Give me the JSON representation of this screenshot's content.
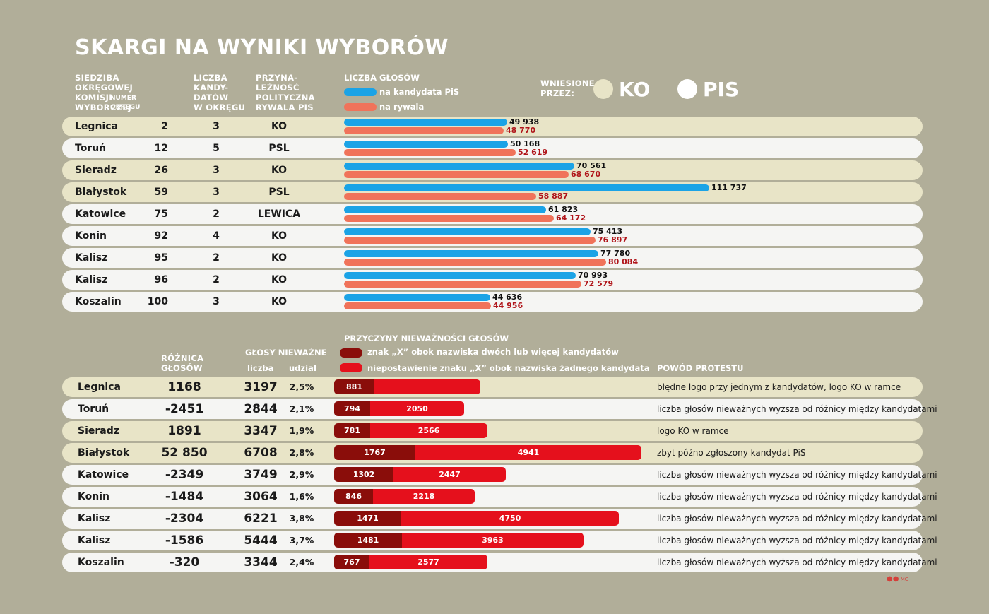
{
  "title": "SKARGI NA WYNIKI WYBORÓW",
  "colors": {
    "background": "#b1ae99",
    "row_ko": "#e8e4c7",
    "row_other": "#f5f5f3",
    "pis": "#1ba3e6",
    "rival": "#f0735a",
    "pis_label": "#111111",
    "rival_label": "#b0151a",
    "invalid_x": "#8a0d0a",
    "invalid_none": "#e5101c",
    "ko_circle": "#e8e4c7",
    "pis_circle": "#ffffff"
  },
  "top_headers": {
    "seat": "SIEDZIBA\nOKRĘGOWEJ\nKOMISJI\nWYBORCZEJ",
    "district_no": "NUMER\nOKRĘGU",
    "candidates": "LICZBA\nKANDY-\nDATÓW\nW OKRĘGU",
    "affiliation": "PRZYNA-\nLEŻNOŚĆ\nPOLITYCZNA\nRYWALA PIS",
    "votes": "LICZBA GŁOSÓW"
  },
  "vote_legend": {
    "pis": "na kandydata PiS",
    "rival": "na rywala"
  },
  "filed_by": {
    "label": "WNIESIONE\nPRZEZ:",
    "ko": "KO",
    "pis": "PIS"
  },
  "bottom_headers": {
    "difference": "RÓŻNICA\nGŁOSÓW",
    "invalid": "GŁOSY NIEWAŻNE",
    "count": "liczba",
    "share": "udział",
    "reasons_title": "PRZYCZYNY NIEWAŻNOŚCI GŁOSÓW",
    "reason_x": "znak „X” obok nazwiska dwóch lub więcej kandydatów",
    "reason_none": "niepostawienie znaku „X” obok nazwiska żadnego kandydata",
    "protest": "POWÓD PROTESTU"
  },
  "credit": "MC",
  "chart_data": [
    {
      "type": "bar",
      "orientation": "horizontal",
      "title": "LICZBA GŁOSÓW",
      "categories": [
        "Legnica",
        "Toruń",
        "Sieradz",
        "Białystok",
        "Katowice",
        "Konin",
        "Kalisz",
        "Kalisz",
        "Koszalin"
      ],
      "district_numbers": [
        "2",
        "12",
        "26",
        "59",
        "75",
        "92",
        "95",
        "96",
        "100"
      ],
      "candidates_count": [
        "3",
        "5",
        "3",
        "3",
        "2",
        "4",
        "2",
        "2",
        "3"
      ],
      "rival_party": [
        "KO",
        "PSL",
        "KO",
        "PSL",
        "LEWICA",
        "KO",
        "KO",
        "KO",
        "KO"
      ],
      "filed_by": [
        "KO",
        "PIS",
        "KO",
        "KO",
        "PIS",
        "PIS",
        "PIS",
        "PIS",
        "PIS"
      ],
      "series": [
        {
          "name": "na kandydata PiS",
          "values": [
            49938,
            50168,
            70561,
            111737,
            61823,
            75413,
            77780,
            70993,
            44636
          ],
          "labels": [
            "49 938",
            "50 168",
            "70 561",
            "111 737",
            "61 823",
            "75 413",
            "77 780",
            "70 993",
            "44 636"
          ]
        },
        {
          "name": "na rywala",
          "values": [
            48770,
            52619,
            68670,
            58887,
            64172,
            76897,
            80084,
            72579,
            44956
          ],
          "labels": [
            "48 770",
            "52 619",
            "68 670",
            "58 887",
            "64 172",
            "76 897",
            "80 084",
            "72 579",
            "44 956"
          ]
        }
      ],
      "xlim": [
        0,
        111737
      ],
      "grid": false,
      "legend": "top-left"
    },
    {
      "type": "bar",
      "orientation": "horizontal",
      "stacked": true,
      "title": "PRZYCZYNY NIEWAŻNOŚCI GŁOSÓW",
      "categories": [
        "Legnica",
        "Toruń",
        "Sieradz",
        "Białystok",
        "Katowice",
        "Konin",
        "Kalisz",
        "Kalisz",
        "Koszalin"
      ],
      "difference": [
        "1168",
        "-2451",
        "1891",
        "52 850",
        "-2349",
        "-1484",
        "-2304",
        "-1586",
        "-320"
      ],
      "invalid_count": [
        "3197",
        "2844",
        "3347",
        "6708",
        "3749",
        "3064",
        "6221",
        "5444",
        "3344"
      ],
      "invalid_share": [
        "2,5%",
        "2,1%",
        "1,9%",
        "2,8%",
        "2,9%",
        "1,6%",
        "3,8%",
        "3,7%",
        "2,4%"
      ],
      "series": [
        {
          "name": "znak „X” obok nazwiska dwóch lub więcej kandydatów",
          "values": [
            881,
            794,
            781,
            1767,
            1302,
            846,
            1471,
            1481,
            767
          ]
        },
        {
          "name": "niepostawienie znaku „X” obok nazwiska żadnego kandydata",
          "values": [
            null,
            2050,
            2566,
            4941,
            2447,
            2218,
            4750,
            3963,
            2577
          ]
        }
      ],
      "protest_reason": [
        "błędne logo przy jednym z kandydatów, logo KO w ramce",
        "liczba głosów nieważnych wyższa od różnicy między kandydatami",
        "logo KO w ramce",
        "zbyt późno zgłoszony kandydat PiS",
        "liczba głosów nieważnych wyższa od różnicy między kandydatami",
        "liczba głosów nieważnych wyższa od różnicy między kandydatami",
        "liczba głosów nieważnych wyższa od różnicy między kandydatami",
        "liczba głosów nieważnych wyższa od różnicy między kandydatami",
        "liczba głosów nieważnych wyższa od różnicy między kandydatami"
      ],
      "grid": false,
      "legend": "top-left"
    }
  ]
}
